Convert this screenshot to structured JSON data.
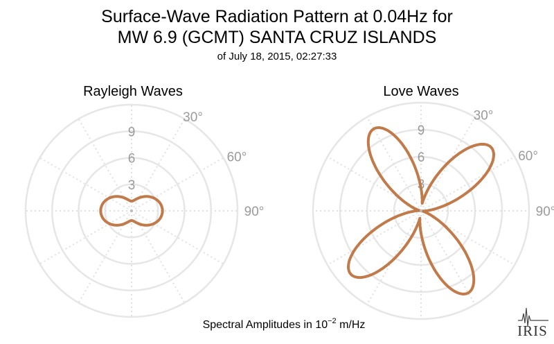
{
  "title": {
    "line1": "Surface-Wave Radiation Pattern at 0.04Hz for",
    "line2": "MW 6.9 (GCMT) SANTA CRUZ ISLANDS",
    "line3": "of July 18, 2015, 02:27:33"
  },
  "footer": {
    "prefix": "Spectral Amplitudes in ",
    "base": "10",
    "exponent": "−2",
    "unit": " m/Hz"
  },
  "logo": {
    "text": "IRIS"
  },
  "colors": {
    "pattern": "#c17a4a",
    "ring": "#e6e6e6",
    "tick": "#9a9a9a"
  },
  "chart_data": [
    {
      "type": "polar",
      "title": "Rayleigh Waves",
      "radial_ticks": [
        "3",
        "6",
        "9"
      ],
      "radial_max": 12,
      "angle_ticks": [
        "30°",
        "60°",
        "90°"
      ],
      "curve": {
        "shape": "two-lobed",
        "lobe_axis_deg": 90,
        "max_amplitude": 3.5,
        "min_amplitude": 1.1,
        "lobe_exponent": 2
      }
    },
    {
      "type": "polar",
      "title": "Love Waves",
      "radial_ticks": [
        "3",
        "6",
        "9"
      ],
      "radial_max": 12,
      "angle_ticks": [
        "30°",
        "60°",
        "90°"
      ],
      "curve": {
        "shape": "four-lobed",
        "lobe_axes_deg": [
          -30,
          48,
          150,
          228
        ],
        "max_amplitude": 10.5,
        "lobe_exponent": 2.5
      }
    }
  ]
}
